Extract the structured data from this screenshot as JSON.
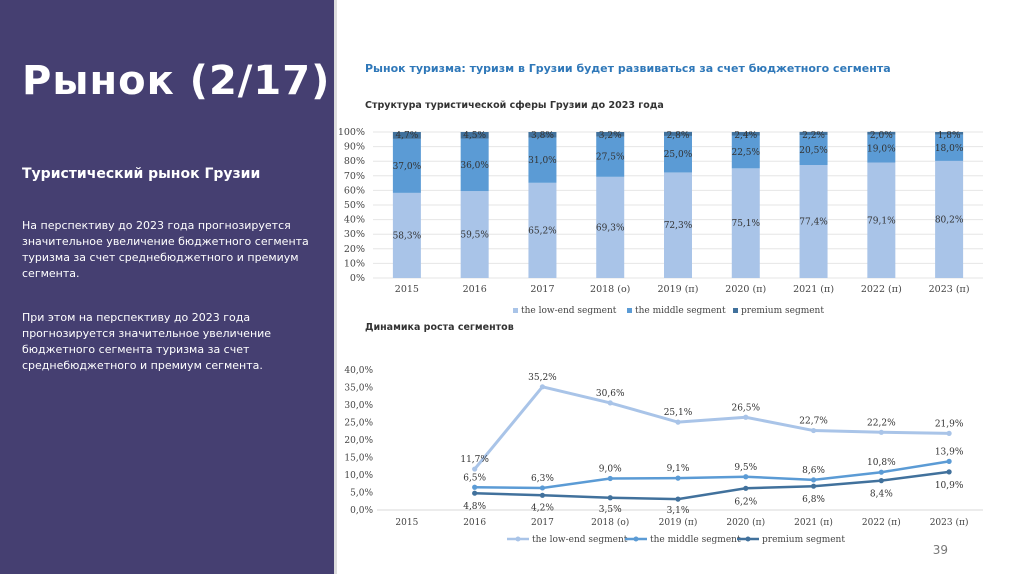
{
  "slide": {
    "title": "Рынок (2/17)",
    "subtitle": "Туристический рынок Грузии",
    "paragraph1": "На перспективу до 2023 года прогнозируется значительное увеличение бюджетного сегмента туризма за счет среднебюджетного и премиум сегмента.",
    "paragraph2": "При этом на перспективу до 2023 года прогнозируется значительное увеличение бюджетного сегмента туризма за счет среднебюджетного и премиум сегмента.",
    "heading": "Рынок туризма: туризм в Грузии будет развиваться за счет бюджетного сегмента",
    "page_number": "39"
  },
  "colors": {
    "panel": "#453f71",
    "low": "#a9c4e8",
    "middle": "#5b9bd5",
    "premium": "#41719c"
  },
  "chart_data": [
    {
      "type": "bar",
      "stacked": true,
      "title": "Структура туристической сферы Грузии до 2023 года",
      "categories": [
        "2015",
        "2016",
        "2017",
        "2018 (о)",
        "2019 (п)",
        "2020 (п)",
        "2021 (п)",
        "2022 (п)",
        "2023 (п)"
      ],
      "series": [
        {
          "name": "the low-end segment",
          "values": [
            58.3,
            59.5,
            65.2,
            69.3,
            72.3,
            75.1,
            77.4,
            79.1,
            80.2
          ],
          "labels": [
            "58,3%",
            "59,5%",
            "65,2%",
            "69,3%",
            "72,3%",
            "75,1%",
            "77,4%",
            "79,1%",
            "80,2%"
          ]
        },
        {
          "name": "the middle segment",
          "values": [
            37.0,
            36.0,
            31.0,
            27.5,
            25.0,
            22.5,
            20.5,
            19.0,
            18.0
          ],
          "labels": [
            "37,0%",
            "36,0%",
            "31,0%",
            "27,5%",
            "25,0%",
            "22,5%",
            "20,5%",
            "19,0%",
            "18,0%"
          ]
        },
        {
          "name": "premium segment",
          "values": [
            4.7,
            4.5,
            3.8,
            3.2,
            2.8,
            2.4,
            2.2,
            2.0,
            1.8
          ],
          "labels": [
            "4,7%",
            "4,5%",
            "3,8%",
            "3,2%",
            "2,8%",
            "2,4%",
            "2,2%",
            "2,0%",
            "1,8%"
          ]
        }
      ],
      "ylim": [
        0,
        100
      ],
      "yticks": [
        "0%",
        "10%",
        "20%",
        "30%",
        "40%",
        "50%",
        "60%",
        "70%",
        "80%",
        "90%",
        "100%"
      ],
      "legend": "bottom"
    },
    {
      "type": "line",
      "title": "Динамика роста сегментов",
      "categories": [
        "2015",
        "2016",
        "2017",
        "2018 (о)",
        "2019 (п)",
        "2020 (п)",
        "2021 (п)",
        "2022 (п)",
        "2023 (п)"
      ],
      "series": [
        {
          "name": "the low-end segment",
          "values": [
            null,
            11.7,
            35.2,
            30.6,
            25.1,
            26.5,
            22.7,
            22.2,
            21.9
          ],
          "labels": [
            "",
            "11,7%",
            "35,2%",
            "30,6%",
            "25,1%",
            "26,5%",
            "22,7%",
            "22,2%",
            "21,9%"
          ]
        },
        {
          "name": "the middle segment",
          "values": [
            null,
            6.5,
            6.3,
            9.0,
            9.1,
            9.5,
            8.6,
            10.8,
            13.9
          ],
          "labels": [
            "",
            "6,5%",
            "6,3%",
            "9,0%",
            "9,1%",
            "9,5%",
            "8,6%",
            "10,8%",
            "13,9%"
          ]
        },
        {
          "name": "premium segment",
          "values": [
            null,
            4.8,
            4.2,
            3.5,
            3.1,
            6.2,
            6.8,
            8.4,
            10.9
          ],
          "labels": [
            "",
            "4,8%",
            "4,2%",
            "3,5%",
            "3,1%",
            "6,2%",
            "6,8%",
            "8,4%",
            "10,9%"
          ]
        }
      ],
      "ylim": [
        0,
        40
      ],
      "yticks": [
        "0,0%",
        "5,0%",
        "10,0%",
        "15,0%",
        "20,0%",
        "25,0%",
        "30,0%",
        "35,0%",
        "40,0%"
      ],
      "legend": "bottom"
    }
  ]
}
